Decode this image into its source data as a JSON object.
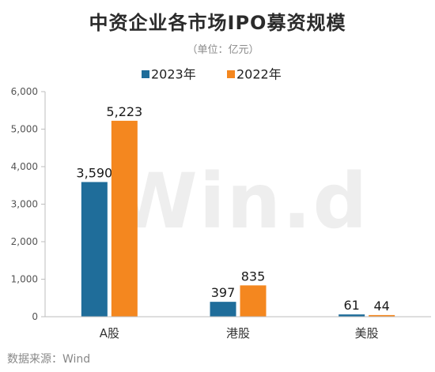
{
  "chart_data": {
    "type": "bar",
    "title": "中资企业各市场IPO募资规模",
    "subtitle": "（单位：亿元）",
    "categories": [
      "A股",
      "港股",
      "美股"
    ],
    "series": [
      {
        "name": "2023年",
        "values": [
          3590,
          397,
          61
        ],
        "labels": [
          "3,590",
          "397",
          "61"
        ],
        "color": "#1f6d9a"
      },
      {
        "name": "2022年",
        "values": [
          5223,
          835,
          44
        ],
        "labels": [
          "5,223",
          "835",
          "44"
        ],
        "color": "#f4871f"
      }
    ],
    "y_ticks": [
      0,
      1000,
      2000,
      3000,
      4000,
      5000,
      6000
    ],
    "y_tick_labels": [
      "0",
      "1,000",
      "2,000",
      "3,000",
      "4,000",
      "5,000",
      "6,000"
    ],
    "ylim": [
      0,
      6000
    ],
    "xlabel": "",
    "ylabel": "",
    "legend_position": "top",
    "grid": false,
    "source": "数据来源：Wind",
    "watermark": "Win.d"
  }
}
